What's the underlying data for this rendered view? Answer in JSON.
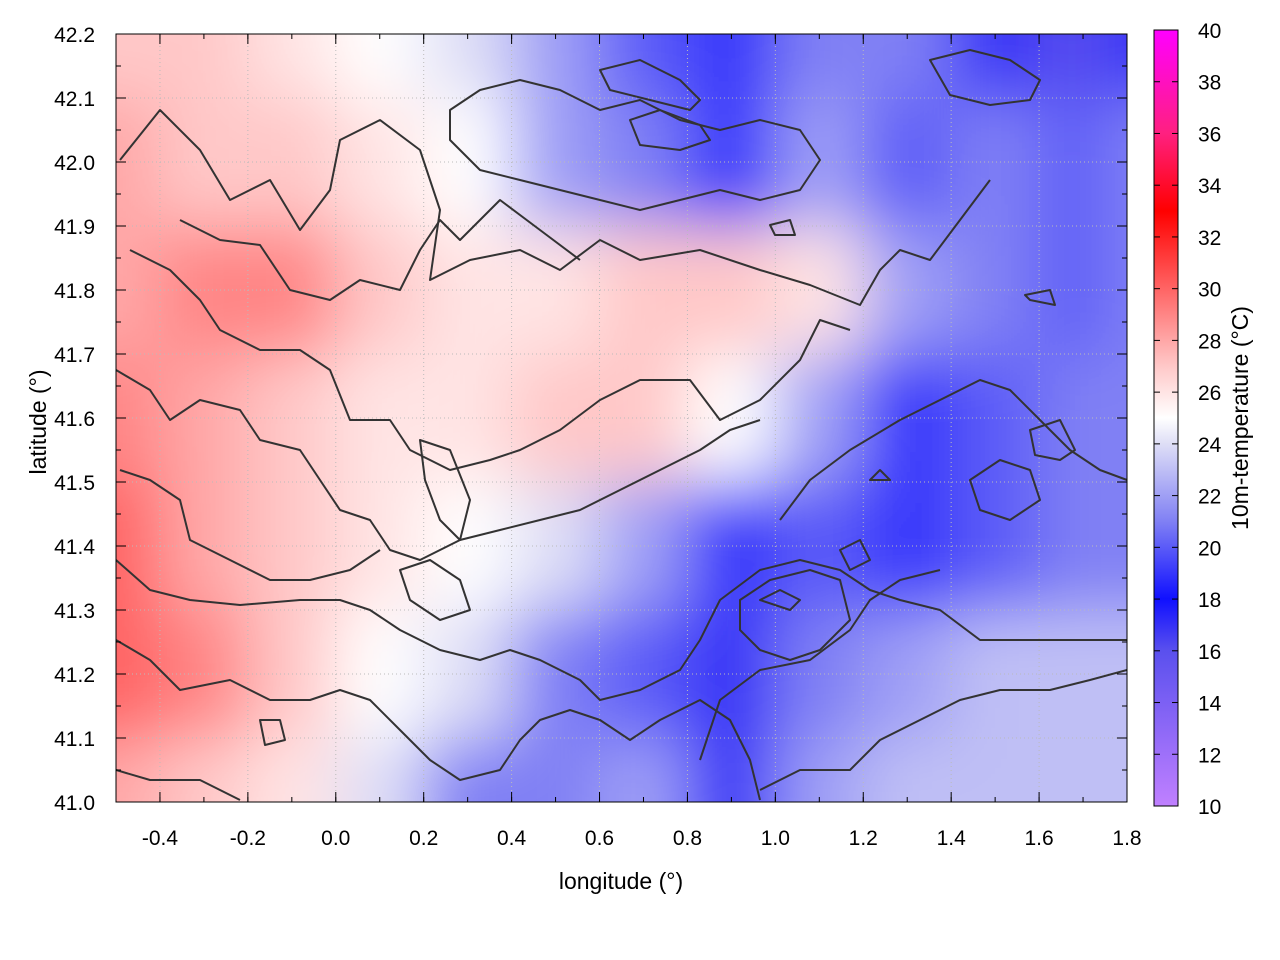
{
  "chart_data": {
    "type": "heatmap",
    "title": "",
    "xlabel": "longitude (°)",
    "ylabel": "latitude (°)",
    "colorbar_label": "10m-temperature (°C)",
    "xlim": [
      -0.5,
      1.8
    ],
    "ylim": [
      41.0,
      42.2
    ],
    "x_ticks": [
      "-0.4",
      "-0.2",
      "0.0",
      "0.2",
      "0.4",
      "0.6",
      "0.8",
      "1.0",
      "1.2",
      "1.4",
      "1.6",
      "1.8"
    ],
    "y_ticks": [
      "41.0",
      "41.1",
      "41.2",
      "41.3",
      "41.4",
      "41.5",
      "41.6",
      "41.7",
      "41.8",
      "41.9",
      "42.0",
      "42.1",
      "42.2"
    ],
    "colorbar_range": [
      10,
      40
    ],
    "colorbar_ticks": [
      "10",
      "12",
      "14",
      "16",
      "18",
      "20",
      "22",
      "24",
      "26",
      "28",
      "30",
      "32",
      "34",
      "36",
      "38",
      "40"
    ],
    "grid": true,
    "colormap": [
      {
        "value": 10,
        "color": "#c080ff"
      },
      {
        "value": 16,
        "color": "#5a50ee"
      },
      {
        "value": 18,
        "color": "#1010ff"
      },
      {
        "value": 21,
        "color": "#8080f4"
      },
      {
        "value": 24,
        "color": "#dedef6"
      },
      {
        "value": 25,
        "color": "#ffffff"
      },
      {
        "value": 27,
        "color": "#ffc8c8"
      },
      {
        "value": 30,
        "color": "#ff6464"
      },
      {
        "value": 33,
        "color": "#ff0000"
      },
      {
        "value": 36,
        "color": "#ff2080"
      },
      {
        "value": 40,
        "color": "#ff00ff"
      }
    ],
    "approx_field": {
      "description_units": "°C at grid points",
      "x": [
        -0.5,
        -0.3,
        -0.1,
        0.1,
        0.3,
        0.5,
        0.7,
        0.9,
        1.1,
        1.3,
        1.5,
        1.7,
        1.8
      ],
      "y": [
        42.2,
        42.0,
        41.8,
        41.6,
        41.4,
        41.2,
        41.0
      ],
      "values": [
        [
          27,
          27,
          26,
          25,
          24,
          22,
          20,
          19,
          21,
          21,
          17,
          16,
          17
        ],
        [
          28,
          27,
          27,
          26,
          25,
          22,
          21,
          19,
          22,
          20,
          21,
          20,
          21
        ],
        [
          28,
          29,
          29,
          27,
          26,
          26,
          27,
          27,
          26,
          22,
          21,
          20,
          21
        ],
        [
          29,
          28,
          27,
          26,
          26,
          27,
          27,
          25,
          22,
          19,
          20,
          21,
          21
        ],
        [
          30,
          28,
          27,
          26,
          25,
          24,
          22,
          19,
          20,
          19,
          20,
          21,
          21
        ],
        [
          30,
          29,
          27,
          25,
          24,
          21,
          20,
          17,
          21,
          22,
          23,
          23,
          23
        ],
        [
          28,
          27,
          26,
          24,
          21,
          21,
          22,
          17,
          22,
          23,
          23,
          23,
          23
        ]
      ]
    }
  }
}
